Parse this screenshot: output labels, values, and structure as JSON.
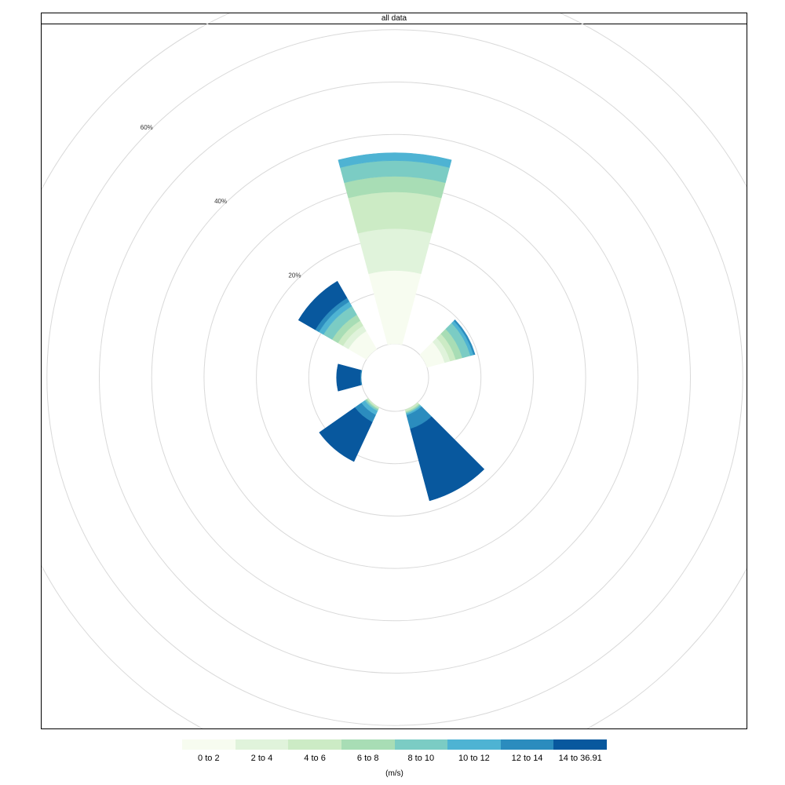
{
  "panel": {
    "strip_title": "all data"
  },
  "chart_data": {
    "type": "wind_rose",
    "title": "all data",
    "radial_axis": {
      "unit": "percent",
      "max": 70,
      "gridlines": [
        10,
        20,
        30,
        40,
        50,
        60,
        70
      ],
      "labels": [
        {
          "value": 20,
          "text": "20%"
        },
        {
          "value": 40,
          "text": "40%"
        },
        {
          "value": 60,
          "text": "60%"
        }
      ]
    },
    "grid_color": "#d9d9d9",
    "legend": {
      "position": "bottom",
      "units_label": "(m/s)",
      "bins": [
        {
          "label": "0 to 2",
          "color": "#f7fcf0"
        },
        {
          "label": "2 to 4",
          "color": "#e0f3db"
        },
        {
          "label": "4 to 6",
          "color": "#ccebc5"
        },
        {
          "label": "6 to 8",
          "color": "#a8ddb5"
        },
        {
          "label": "8 to 10",
          "color": "#7bccc4"
        },
        {
          "label": "10 to 12",
          "color": "#4eb3d3"
        },
        {
          "label": "12 to 14",
          "color": "#2b8cbe"
        },
        {
          "label": "14 to 36.91",
          "color": "#08589e"
        }
      ]
    },
    "sectors": [
      {
        "direction_deg": 0,
        "cumulative": [
          14,
          22,
          29,
          32,
          35,
          36.5,
          36.5,
          36.5
        ]
      },
      {
        "direction_deg": 60,
        "cumulative": [
          3.5,
          4.6,
          5.7,
          7.0,
          8.6,
          9.2,
          9.5,
          9.5
        ]
      },
      {
        "direction_deg": 150,
        "cumulative": [
          0,
          0,
          0.4,
          0.6,
          0.8,
          1.1,
          3.8,
          18
        ]
      },
      {
        "direction_deg": 220,
        "cumulative": [
          0,
          0,
          0.3,
          0.5,
          0.8,
          1.6,
          3.1,
          11.4
        ]
      },
      {
        "direction_deg": 270,
        "cumulative": [
          0,
          0,
          0,
          0,
          0,
          0,
          0.2,
          4.7
        ]
      },
      {
        "direction_deg": 315,
        "cumulative": [
          4.0,
          5.2,
          6.3,
          7.6,
          9.5,
          10.5,
          11.3,
          15.0
        ]
      }
    ]
  }
}
